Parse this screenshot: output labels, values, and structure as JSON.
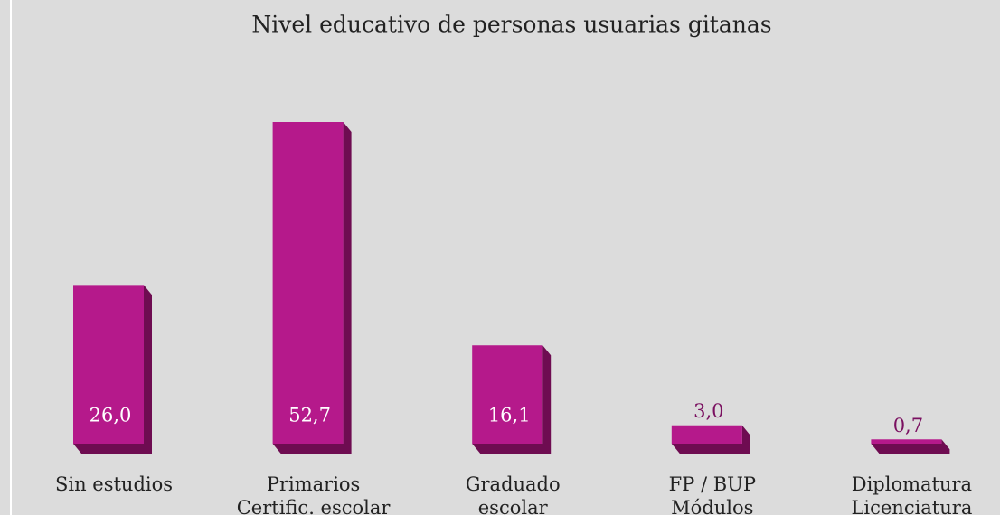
{
  "chart_data": {
    "type": "bar",
    "title": "Nivel educativo de personas usuarias gitanas",
    "categories": [
      "Sin estudios",
      "Primarios\nCertific. escolar",
      "Graduado\nescolar",
      "FP / BUP\nMódulos",
      "Diplomatura\nLicenciatura"
    ],
    "values": [
      26.0,
      52.7,
      16.1,
      3.0,
      0.7
    ],
    "value_labels": [
      "26,0",
      "52,7",
      "16,1",
      "3,0",
      "0,7"
    ],
    "color": "#b5198b",
    "side_color": "#6e0c51"
  }
}
